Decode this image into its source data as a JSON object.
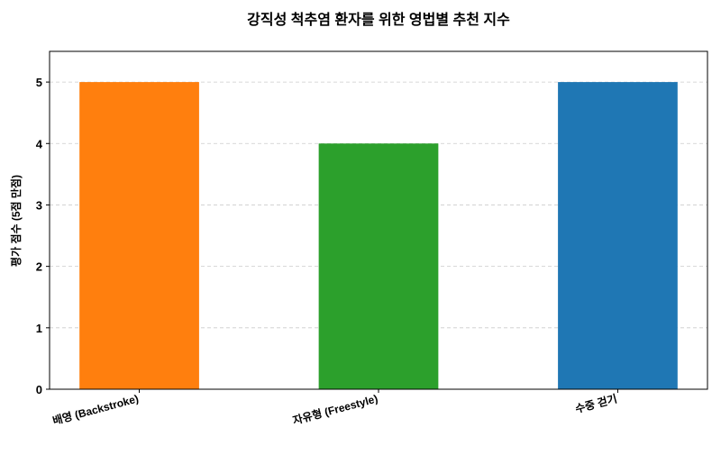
{
  "chart_data": {
    "type": "bar",
    "title": "강직성 척추염 환자를 위한 영법별 추천 지수",
    "xlabel": "",
    "ylabel": "평가 점수 (5점 만점)",
    "categories": [
      "배영 (Backstroke)",
      "자유형 (Freestyle)",
      "수중 걷기"
    ],
    "values": [
      5,
      4,
      5
    ],
    "colors": [
      "#ff7f0e",
      "#2ca02c",
      "#1f77b4"
    ],
    "ylim": [
      0,
      5.5
    ],
    "yticks": [
      0,
      1,
      2,
      3,
      4,
      5
    ],
    "grid": "y-dashed",
    "legend": "none"
  }
}
